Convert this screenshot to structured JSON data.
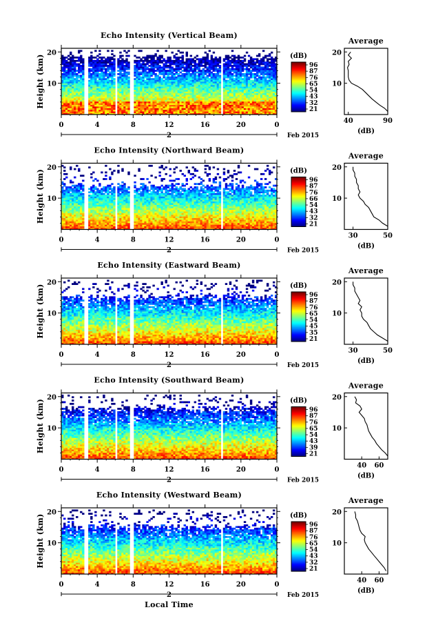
{
  "charts": [
    {
      "title": "Echo Intensity (Vertical Beam)",
      "cb_ticks": [
        "96",
        "87",
        "76",
        "65",
        "54",
        "43",
        "32",
        "21"
      ],
      "avg_xticks": [
        "40",
        "90"
      ],
      "avg_profile": "vertical"
    },
    {
      "title": "Echo Intensity (Northward Beam)",
      "cb_ticks": [
        "96",
        "87",
        "76",
        "66",
        "54",
        "43",
        "32",
        "21"
      ],
      "avg_xticks": [
        "30",
        "50"
      ],
      "avg_profile": "north"
    },
    {
      "title": "Echo Intensity (Eastward Beam)",
      "cb_ticks": [
        "96",
        "87",
        "76",
        "65",
        "54",
        "45",
        "35",
        "21"
      ],
      "avg_xticks": [
        "30",
        "50"
      ],
      "avg_profile": "east"
    },
    {
      "title": "Echo Intensity (Southward Beam)",
      "cb_ticks": [
        "96",
        "87",
        "76",
        "65",
        "54",
        "43",
        "39",
        "21"
      ],
      "avg_xticks": [
        "40",
        "60"
      ],
      "avg_profile": "south"
    },
    {
      "title": "Echo Intensity (Westward Beam)",
      "cb_ticks": [
        "96",
        "87",
        "76",
        "65",
        "54",
        "43",
        "32",
        "21"
      ],
      "avg_xticks": [
        "40",
        "60"
      ],
      "avg_profile": "west"
    }
  ],
  "common": {
    "ylabel": "Height (km)",
    "yticks": [
      "20",
      "10"
    ],
    "xticks": [
      "0",
      "4",
      "8",
      "12",
      "16",
      "20",
      "0"
    ],
    "day": "2",
    "date_label": "Feb 2015",
    "cb_unit": "(dB)",
    "avg_title": "Average",
    "avg_ylabel": [
      "20",
      "10"
    ],
    "avg_xlabel": "(dB)",
    "xlabel": "Local Time"
  },
  "chart_data": {
    "type": "heatmap",
    "title": "Echo Intensity",
    "xlabel": "Local Time",
    "ylabel": "Height (km)",
    "x_range_hours": [
      0,
      24
    ],
    "y_range_km": [
      0,
      20
    ],
    "color_scale_db": [
      21,
      96
    ],
    "data_gaps_hours": [
      [
        2.5,
        2.9
      ],
      [
        5.8,
        6.2
      ],
      [
        7.6,
        8.0
      ],
      [
        17.6,
        18.0
      ]
    ],
    "series": [
      {
        "name": "Vertical Beam",
        "avg_profile_db": [
          [
            1,
            90
          ],
          [
            2,
            86
          ],
          [
            3,
            80
          ],
          [
            4,
            75
          ],
          [
            5,
            70
          ],
          [
            6,
            66
          ],
          [
            7,
            62
          ],
          [
            8,
            58
          ],
          [
            9,
            52
          ],
          [
            10,
            44
          ],
          [
            11,
            41
          ],
          [
            12,
            40
          ],
          [
            13,
            40
          ],
          [
            14,
            40
          ],
          [
            15,
            39
          ],
          [
            16,
            41
          ],
          [
            17,
            40
          ],
          [
            18,
            44
          ],
          [
            19,
            40
          ],
          [
            20,
            43
          ]
        ]
      },
      {
        "name": "Northward Beam",
        "avg_profile_db": [
          [
            1,
            50
          ],
          [
            2,
            47
          ],
          [
            3,
            45
          ],
          [
            4,
            42
          ],
          [
            5,
            41
          ],
          [
            6,
            40
          ],
          [
            7,
            39
          ],
          [
            8,
            37
          ],
          [
            9,
            36
          ],
          [
            10,
            34
          ],
          [
            11,
            33
          ],
          [
            12,
            34
          ],
          [
            13,
            33
          ],
          [
            14,
            33
          ],
          [
            15,
            32
          ],
          [
            16,
            32
          ],
          [
            17,
            31
          ],
          [
            18,
            31
          ],
          [
            19,
            30
          ],
          [
            20,
            30
          ]
        ]
      },
      {
        "name": "Eastward Beam",
        "avg_profile_db": [
          [
            1,
            50
          ],
          [
            2,
            47
          ],
          [
            3,
            44
          ],
          [
            4,
            42
          ],
          [
            5,
            40
          ],
          [
            6,
            39
          ],
          [
            7,
            38
          ],
          [
            8,
            36
          ],
          [
            9,
            35
          ],
          [
            10,
            35
          ],
          [
            11,
            34
          ],
          [
            12,
            35
          ],
          [
            13,
            33
          ],
          [
            14,
            34
          ],
          [
            15,
            33
          ],
          [
            16,
            32
          ],
          [
            17,
            31
          ],
          [
            18,
            31
          ],
          [
            19,
            30
          ],
          [
            20,
            30
          ]
        ]
      },
      {
        "name": "Southward Beam",
        "avg_profile_db": [
          [
            1,
            70
          ],
          [
            2,
            67
          ],
          [
            3,
            63
          ],
          [
            4,
            60
          ],
          [
            5,
            57
          ],
          [
            6,
            55
          ],
          [
            7,
            52
          ],
          [
            8,
            50
          ],
          [
            9,
            48
          ],
          [
            10,
            47
          ],
          [
            11,
            46
          ],
          [
            12,
            44
          ],
          [
            13,
            43
          ],
          [
            14,
            40
          ],
          [
            15,
            37
          ],
          [
            16,
            40
          ],
          [
            17,
            38
          ],
          [
            18,
            33
          ],
          [
            19,
            34
          ],
          [
            20,
            32
          ]
        ]
      },
      {
        "name": "Westward Beam",
        "avg_profile_db": [
          [
            1,
            68
          ],
          [
            2,
            66
          ],
          [
            3,
            63
          ],
          [
            4,
            60
          ],
          [
            5,
            57
          ],
          [
            6,
            54
          ],
          [
            7,
            51
          ],
          [
            8,
            48
          ],
          [
            9,
            46
          ],
          [
            10,
            44
          ],
          [
            11,
            43
          ],
          [
            12,
            44
          ],
          [
            13,
            40
          ],
          [
            14,
            38
          ],
          [
            15,
            37
          ],
          [
            16,
            36
          ],
          [
            17,
            35
          ],
          [
            18,
            33
          ],
          [
            19,
            33
          ],
          [
            20,
            32
          ]
        ]
      }
    ]
  }
}
